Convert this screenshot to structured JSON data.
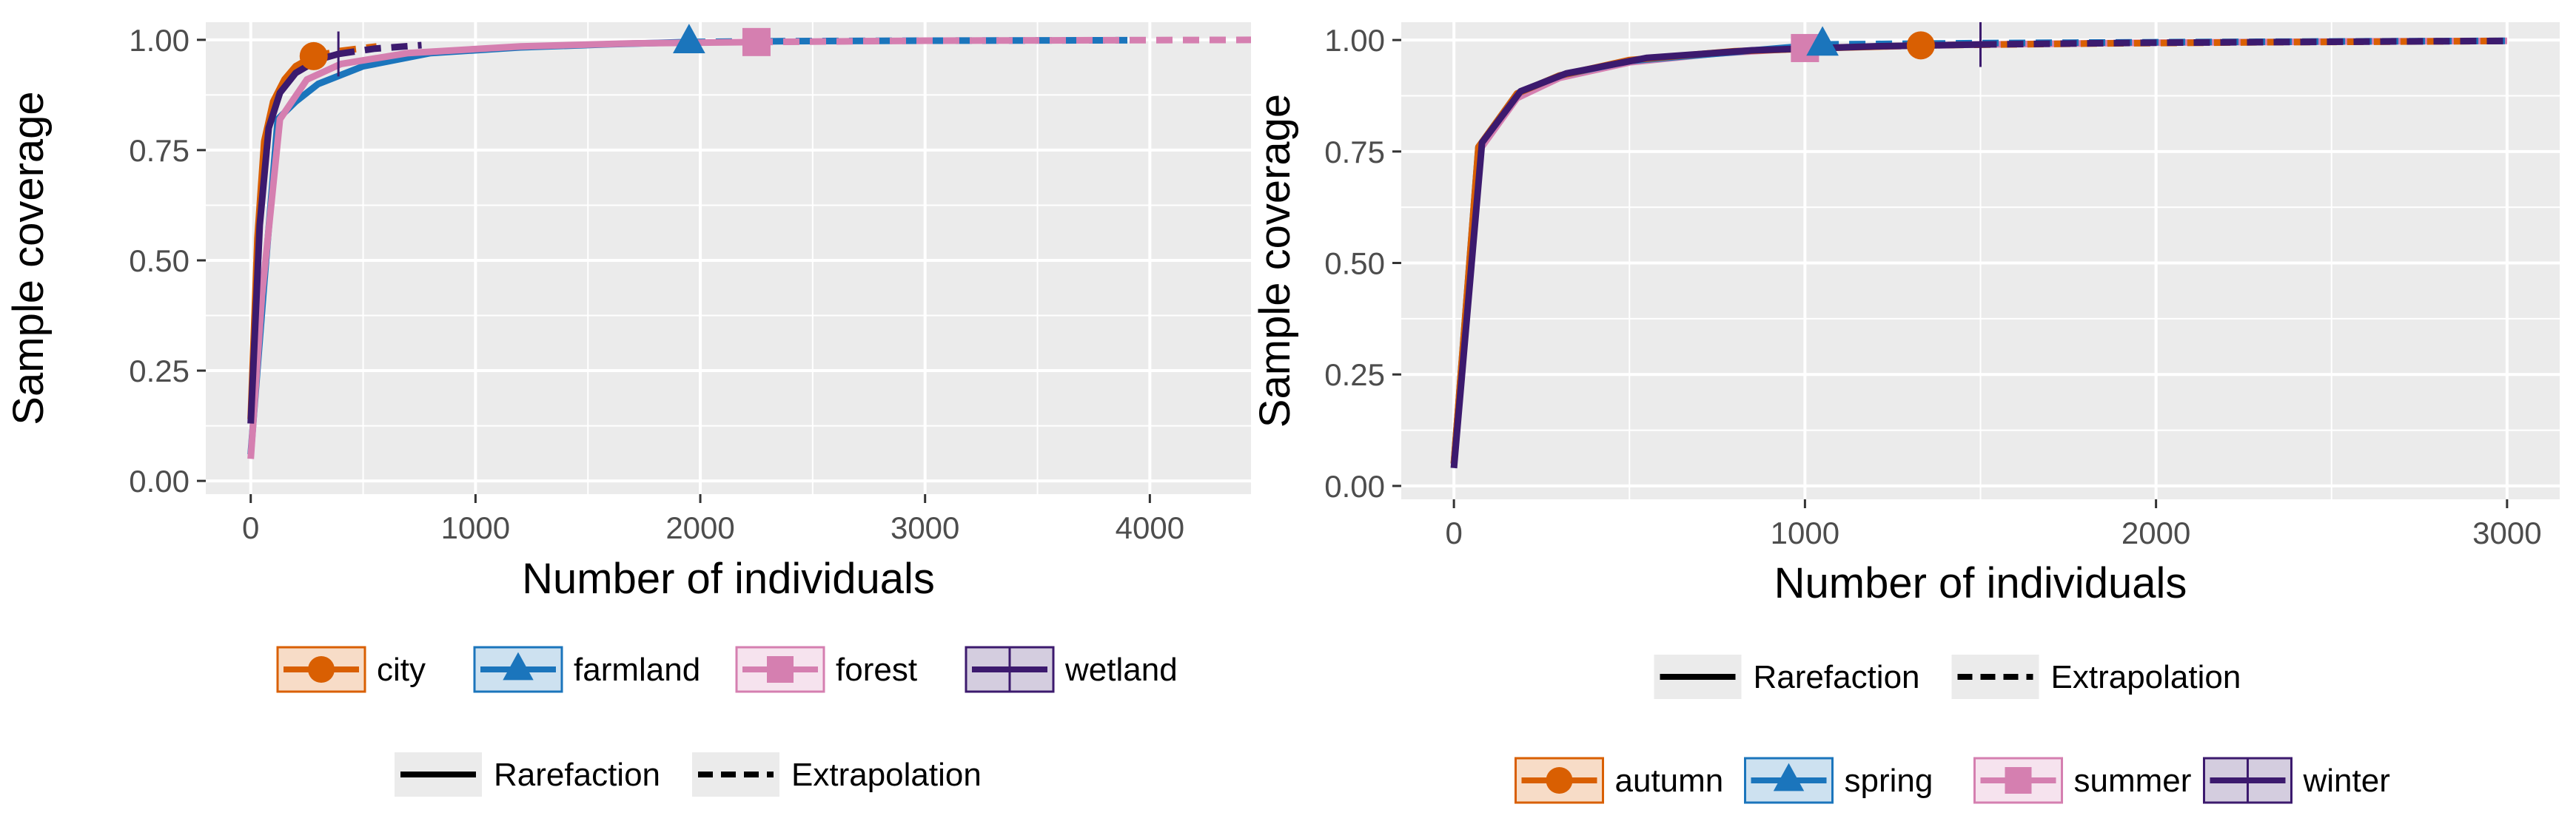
{
  "colors": {
    "panel": "#EBEBEB",
    "grid": "#FFFFFF",
    "text": "#333333",
    "series": {
      "city": "#D95F02",
      "farmland": "#1B75BC",
      "forest": "#D57FB0",
      "wetland": "#3C1A6E",
      "autumn": "#D95F02",
      "spring": "#1B75BC",
      "summer": "#D57FB0",
      "winter": "#3C1A6E"
    }
  },
  "chart_data": [
    {
      "type": "line",
      "xlabel": "Number of individuals",
      "ylabel": "Sample coverage",
      "xlim": [
        -200,
        4450
      ],
      "ylim": [
        -0.03,
        1.04
      ],
      "xticks": [
        0,
        1000,
        2000,
        3000,
        4000
      ],
      "yticks": [
        "0.00",
        "0.25",
        "0.50",
        "0.75",
        "1.00"
      ],
      "yticks_values": [
        0,
        0.25,
        0.5,
        0.75,
        1.0
      ],
      "grid": true,
      "legend_position": "bottom",
      "legend_series": [
        "city",
        "farmland",
        "forest",
        "wetland"
      ],
      "legend_methods": [
        "Rarefaction",
        "Extrapolation"
      ],
      "series": [
        {
          "name": "city",
          "marker": "circle",
          "color_key": "city",
          "rarefaction": [
            [
              0,
              0.14
            ],
            [
              30,
              0.55
            ],
            [
              60,
              0.77
            ],
            [
              100,
              0.86
            ],
            [
              150,
              0.91
            ],
            [
              200,
              0.94
            ],
            [
              280,
              0.963
            ]
          ],
          "extrapolation": [
            [
              280,
              0.963
            ],
            [
              400,
              0.975
            ],
            [
              560,
              0.985
            ]
          ],
          "observed": [
            280,
            0.963
          ]
        },
        {
          "name": "farmland",
          "marker": "triangle",
          "color_key": "farmland",
          "rarefaction": [
            [
              0,
              0.06
            ],
            [
              60,
              0.45
            ],
            [
              120,
              0.82
            ],
            [
              200,
              0.86
            ],
            [
              300,
              0.9
            ],
            [
              500,
              0.94
            ],
            [
              800,
              0.97
            ],
            [
              1200,
              0.983
            ],
            [
              1600,
              0.99
            ],
            [
              1950,
              0.995
            ]
          ],
          "extrapolation": [
            [
              1950,
              0.995
            ],
            [
              2400,
              0.997
            ],
            [
              3000,
              0.998
            ],
            [
              3900,
              0.999
            ]
          ],
          "observed": [
            1950,
            0.995
          ]
        },
        {
          "name": "forest",
          "marker": "square",
          "color_key": "forest",
          "rarefaction": [
            [
              0,
              0.05
            ],
            [
              50,
              0.42
            ],
            [
              130,
              0.82
            ],
            [
              250,
              0.91
            ],
            [
              400,
              0.945
            ],
            [
              700,
              0.97
            ],
            [
              1200,
              0.985
            ],
            [
              1700,
              0.992
            ],
            [
              2250,
              0.995
            ]
          ],
          "extrapolation": [
            [
              2250,
              0.995
            ],
            [
              3000,
              0.998
            ],
            [
              4450,
              1.0
            ]
          ],
          "observed": [
            2250,
            0.995
          ]
        },
        {
          "name": "wetland",
          "marker": "cross",
          "color_key": "wetland",
          "rarefaction": [
            [
              0,
              0.13
            ],
            [
              40,
              0.58
            ],
            [
              80,
              0.8
            ],
            [
              130,
              0.88
            ],
            [
              200,
              0.925
            ],
            [
              300,
              0.955
            ],
            [
              390,
              0.968
            ]
          ],
          "extrapolation": [
            [
              390,
              0.968
            ],
            [
              550,
              0.98
            ],
            [
              760,
              0.988
            ]
          ],
          "observed": [
            390,
            0.968
          ]
        }
      ]
    },
    {
      "type": "line",
      "xlabel": "Number of individuals",
      "ylabel": "Sample coverage",
      "xlim": [
        -150,
        3150
      ],
      "ylim": [
        -0.03,
        1.04
      ],
      "xticks": [
        0,
        1000,
        2000,
        3000
      ],
      "yticks": [
        "0.00",
        "0.25",
        "0.50",
        "0.75",
        "1.00"
      ],
      "yticks_values": [
        0,
        0.25,
        0.5,
        0.75,
        1.0
      ],
      "grid": true,
      "legend_position": "bottom",
      "legend_series": [
        "autumn",
        "spring",
        "summer",
        "winter"
      ],
      "legend_methods": [
        "Rarefaction",
        "Extrapolation"
      ],
      "series": [
        {
          "name": "summer",
          "marker": "square",
          "color_key": "summer",
          "rarefaction": [
            [
              0,
              0.05
            ],
            [
              70,
              0.75
            ],
            [
              180,
              0.87
            ],
            [
              300,
              0.915
            ],
            [
              500,
              0.95
            ],
            [
              750,
              0.97
            ],
            [
              1000,
              0.982
            ]
          ],
          "extrapolation": [
            [
              1000,
              0.982
            ],
            [
              1500,
              0.99
            ],
            [
              2000,
              0.994
            ],
            [
              2600,
              0.997
            ],
            [
              3000,
              0.998
            ]
          ],
          "observed": [
            1000,
            0.982
          ]
        },
        {
          "name": "spring",
          "marker": "triangle",
          "color_key": "spring",
          "rarefaction": [
            [
              0,
              0.05
            ],
            [
              70,
              0.76
            ],
            [
              180,
              0.88
            ],
            [
              300,
              0.92
            ],
            [
              500,
              0.953
            ],
            [
              800,
              0.973
            ],
            [
              1050,
              0.99
            ]
          ],
          "extrapolation": [
            [
              1050,
              0.99
            ],
            [
              1500,
              0.993
            ],
            [
              2000,
              0.995
            ],
            [
              2600,
              0.997
            ],
            [
              3000,
              0.998
            ]
          ],
          "observed": [
            1050,
            0.99
          ]
        },
        {
          "name": "autumn",
          "marker": "circle",
          "color_key": "autumn",
          "rarefaction": [
            [
              0,
              0.05
            ],
            [
              70,
              0.76
            ],
            [
              180,
              0.88
            ],
            [
              300,
              0.92
            ],
            [
              500,
              0.955
            ],
            [
              800,
              0.975
            ],
            [
              1100,
              0.983
            ],
            [
              1330,
              0.988
            ]
          ],
          "extrapolation": [
            [
              1330,
              0.988
            ],
            [
              1800,
              0.992
            ],
            [
              2300,
              0.995
            ],
            [
              2800,
              0.997
            ],
            [
              3000,
              0.998
            ]
          ],
          "observed": [
            1330,
            0.988
          ]
        },
        {
          "name": "winter",
          "marker": "cross",
          "color_key": "winter",
          "rarefaction": [
            [
              0,
              0.04
            ],
            [
              80,
              0.77
            ],
            [
              190,
              0.885
            ],
            [
              320,
              0.925
            ],
            [
              550,
              0.96
            ],
            [
              850,
              0.977
            ],
            [
              1200,
              0.986
            ],
            [
              1500,
              0.99
            ]
          ],
          "extrapolation": [
            [
              1500,
              0.99
            ],
            [
              2000,
              0.994
            ],
            [
              2500,
              0.996
            ],
            [
              3000,
              0.998
            ]
          ],
          "observed": [
            1500,
            0.99
          ]
        }
      ]
    }
  ]
}
